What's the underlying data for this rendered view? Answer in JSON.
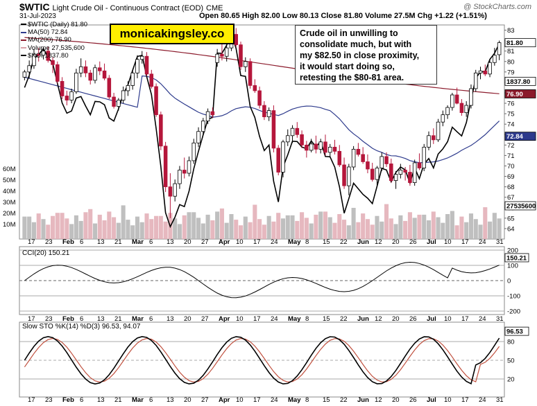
{
  "header": {
    "symbol": "$WTIC",
    "description": "Light Crude Oil - Continuous Contract (EOD)",
    "exchange": "CME",
    "date": "31-Jul-2023",
    "ohlc": "Open 80.65  High 82.00  Low 80.13  Close 81.80  Volume 27.5M  Chg +1.22 (+1.51%)",
    "watermark": "@ StockCharts.com"
  },
  "brand_label": "monicakingsley.co",
  "annotation": {
    "lines": [
      "Crude oil in unwilling to",
      "consolidate much, but with",
      "my $82.50 in close proximity,",
      "it would start doing so,",
      "retesting the $80-81 area."
    ]
  },
  "legend": {
    "items": [
      "$WTIC (Daily) 81.80",
      "MA(50) 72.84",
      "MA(200) 76.90",
      "Volume 27,535,600",
      "$XOI 1837.80"
    ],
    "colors": [
      "#000000",
      "#2d3a8c",
      "#8b1a2b",
      "#d9a0a8",
      "#000000"
    ]
  },
  "colors": {
    "up": "#ffffff",
    "down": "#b5163b",
    "ma50": "#2d3a8c",
    "ma200": "#8b1a2b",
    "xoi": "#000000",
    "vol_up": "#b8b8b8",
    "vol_down": "#e3b0b8",
    "cci_pos": "#4f7d4f",
    "cci_neg": "#8b5a55",
    "sto_k": "#000000",
    "sto_d": "#c0503e"
  },
  "chart_data": [
    {
      "type": "candlestick",
      "title": "$WTIC (Daily) 81.80",
      "x_tick_labels": [
        "17",
        "23",
        "Feb",
        "6",
        "13",
        "21",
        "Mar",
        "6",
        "13",
        "20",
        "27",
        "Apr",
        "10",
        "17",
        "24",
        "May",
        "8",
        "15",
        "22",
        "Jun",
        "12",
        "20",
        "26",
        "Jul",
        "10",
        "17",
        "24",
        "31"
      ],
      "price_ticks": [
        64,
        65,
        66,
        67,
        68,
        69,
        70,
        71,
        72,
        73,
        74,
        75,
        76,
        77,
        78,
        79,
        80,
        81,
        82,
        83
      ],
      "ylim": [
        63,
        83.5
      ],
      "volume_ticks": [
        "10M",
        "20M",
        "30M",
        "40M",
        "50M",
        "60M"
      ],
      "candles": [
        [
          78.5,
          79.2,
          78.2,
          79.0
        ],
        [
          79,
          80.1,
          78.4,
          79.6
        ],
        [
          79.6,
          81.2,
          79.3,
          80.7
        ],
        [
          80.7,
          81.3,
          80.0,
          80.6
        ],
        [
          80.6,
          81.4,
          80.2,
          81.0
        ],
        [
          81,
          81.4,
          79.9,
          80.1
        ],
        [
          80.1,
          80.4,
          78.9,
          79.7
        ],
        [
          79.7,
          80.0,
          77.9,
          78.1
        ],
        [
          78.1,
          78.5,
          76.4,
          76.7
        ],
        [
          76.7,
          77.2,
          75.8,
          76.3
        ],
        [
          76.3,
          77.4,
          76.0,
          77.1
        ],
        [
          77.1,
          79.3,
          76.9,
          78.9
        ],
        [
          78.9,
          80.3,
          78.5,
          79.5
        ],
        [
          79.5,
          80.1,
          78.5,
          78.9
        ],
        [
          78.9,
          79.2,
          77.8,
          78.2
        ],
        [
          78.2,
          79.7,
          77.9,
          79.4
        ],
        [
          79.4,
          80.0,
          78.7,
          79.1
        ],
        [
          79.1,
          79.8,
          78.2,
          78.4
        ],
        [
          78.4,
          78.7,
          76.4,
          76.6
        ],
        [
          76.6,
          77.0,
          75.5,
          75.7
        ],
        [
          75.7,
          76.5,
          75.3,
          76.3
        ],
        [
          76.3,
          77.6,
          76.0,
          77.2
        ],
        [
          77.2,
          78.1,
          76.7,
          77.7
        ],
        [
          77.7,
          79.2,
          77.3,
          78.9
        ],
        [
          78.9,
          80.6,
          78.4,
          80.2
        ],
        [
          80.2,
          81.0,
          79.8,
          80.5
        ],
        [
          80.5,
          80.9,
          78.6,
          78.8
        ],
        [
          78.8,
          79.2,
          77.4,
          77.6
        ],
        [
          77.6,
          77.9,
          74.7,
          74.9
        ],
        [
          74.9,
          75.2,
          71.5,
          71.9
        ],
        [
          71.9,
          72.3,
          67.5,
          68.0
        ],
        [
          68.0,
          69.3,
          65.0,
          67.1
        ],
        [
          67.1,
          68.7,
          66.6,
          68.3
        ],
        [
          68.3,
          70.0,
          67.8,
          69.6
        ],
        [
          69.6,
          70.8,
          68.8,
          69.3
        ],
        [
          69.3,
          70.9,
          69.0,
          70.5
        ],
        [
          70.5,
          72.6,
          70.2,
          72.2
        ],
        [
          72.2,
          73.7,
          71.8,
          73.3
        ],
        [
          73.3,
          74.6,
          73.0,
          74.3
        ],
        [
          74.3,
          75.5,
          74.0,
          75.2
        ],
        [
          75.2,
          75.6,
          74.6,
          74.9
        ],
        [
          79.9,
          81.2,
          79.5,
          80.7
        ],
        [
          80.7,
          81.8,
          80.1,
          80.5
        ],
        [
          80.5,
          81.5,
          80.0,
          81.3
        ],
        [
          81.3,
          83.5,
          81.0,
          82.6
        ],
        [
          82.6,
          83.2,
          81.4,
          81.6
        ],
        [
          81.6,
          81.9,
          79.2,
          79.5
        ],
        [
          79.5,
          80.4,
          79.0,
          80.0
        ],
        [
          80.0,
          80.3,
          77.4,
          77.7
        ],
        [
          77.7,
          78.3,
          77.0,
          77.2
        ],
        [
          77.2,
          77.6,
          75.5,
          75.8
        ],
        [
          75.8,
          76.2,
          74.4,
          74.7
        ],
        [
          74.7,
          75.6,
          74.3,
          75.3
        ],
        [
          75.3,
          75.8,
          71.3,
          71.7
        ],
        [
          71.7,
          72.0,
          69.1,
          69.4
        ],
        [
          69.4,
          72.5,
          68.9,
          72.3
        ],
        [
          72.3,
          73.5,
          71.9,
          72.9
        ],
        [
          72.9,
          73.9,
          72.2,
          73.6
        ],
        [
          73.6,
          74.2,
          72.7,
          73.0
        ],
        [
          73.0,
          73.4,
          71.7,
          72.0
        ],
        [
          72.0,
          72.4,
          70.8,
          71.5
        ],
        [
          71.5,
          72.6,
          71.3,
          72.1
        ],
        [
          72.1,
          72.9,
          71.2,
          71.6
        ],
        [
          71.6,
          72.6,
          71.2,
          72.3
        ],
        [
          72.3,
          73.0,
          71.0,
          71.3
        ],
        [
          71.3,
          72.1,
          70.9,
          71.8
        ],
        [
          71.8,
          72.5,
          71.1,
          71.4
        ],
        [
          71.4,
          72.0,
          69.9,
          70.1
        ],
        [
          70.1,
          70.8,
          67.8,
          68.1
        ],
        [
          68.1,
          70.2,
          67.2,
          69.9
        ],
        [
          69.9,
          71.9,
          69.6,
          71.6
        ],
        [
          71.6,
          72.2,
          70.9,
          71.1
        ],
        [
          71.1,
          71.8,
          70.2,
          70.4
        ],
        [
          70.4,
          71.1,
          69.3,
          69.7
        ],
        [
          69.7,
          70.3,
          68.5,
          68.7
        ],
        [
          68.7,
          70.0,
          68.0,
          69.8
        ],
        [
          69.8,
          71.3,
          69.5,
          70.9
        ],
        [
          70.9,
          71.3,
          69.9,
          70.2
        ],
        [
          70.2,
          70.7,
          68.4,
          68.6
        ],
        [
          68.6,
          69.5,
          67.8,
          69.2
        ],
        [
          69.2,
          70.2,
          68.8,
          69.6
        ],
        [
          69.6,
          69.9,
          68.6,
          69.4
        ],
        [
          69.4,
          70.1,
          68.1,
          68.4
        ],
        [
          68.4,
          70.6,
          68.1,
          70.3
        ],
        [
          70.3,
          71.2,
          69.6,
          69.8
        ],
        [
          69.8,
          72.1,
          69.5,
          71.8
        ],
        [
          71.8,
          73.3,
          71.5,
          72.9
        ],
        [
          72.9,
          73.6,
          72.1,
          72.5
        ],
        [
          72.5,
          74.5,
          72.3,
          74.2
        ],
        [
          74.2,
          75.3,
          73.8,
          74.9
        ],
        [
          74.9,
          75.8,
          74.5,
          75.6
        ],
        [
          75.6,
          77.0,
          75.3,
          76.8
        ],
        [
          76.8,
          77.5,
          75.9,
          76.0
        ],
        [
          76.0,
          76.4,
          74.8,
          75.1
        ],
        [
          75.1,
          76.2,
          74.7,
          75.8
        ],
        [
          75.8,
          77.8,
          75.5,
          77.4
        ],
        [
          77.4,
          79.2,
          77.1,
          78.9
        ],
        [
          78.9,
          79.5,
          78.3,
          79.1
        ],
        [
          79.1,
          79.7,
          78.6,
          78.8
        ],
        [
          78.8,
          80.1,
          78.5,
          79.9
        ],
        [
          79.9,
          81.3,
          79.6,
          80.6
        ],
        [
          80.65,
          82.0,
          80.13,
          81.8
        ]
      ],
      "ma50_last": 72.84,
      "ma200_last": 76.9,
      "xoi_last": 1837.8,
      "volume_last": "27535600",
      "right_labels": [
        "81.80",
        "1837.80",
        "76.90",
        "72.84",
        "27535600"
      ]
    },
    {
      "type": "line",
      "title": "CCI(20) 150.21",
      "yticks": [
        200,
        100,
        0,
        -100,
        -200
      ],
      "ylim": [
        -240,
        240
      ],
      "last": 150.21
    },
    {
      "type": "line",
      "title": "Slow STO %K(14) %D(3) 96.53, 94.07",
      "series": [
        {
          "name": "%K(14)",
          "last": 96.53
        },
        {
          "name": "%D(3)",
          "last": 94.07
        }
      ],
      "yticks": [
        80,
        50,
        20
      ],
      "ylim": [
        0,
        100
      ]
    }
  ],
  "x_labels_bottom": [
    "17",
    "23",
    "Feb",
    "6",
    "13",
    "21",
    "Mar",
    "6",
    "13",
    "20",
    "27",
    "Apr",
    "10",
    "17",
    "24",
    "May",
    "8",
    "15",
    "22",
    "Jun",
    "12",
    "20",
    "26",
    "Jul",
    "10",
    "17",
    "24",
    "31"
  ]
}
